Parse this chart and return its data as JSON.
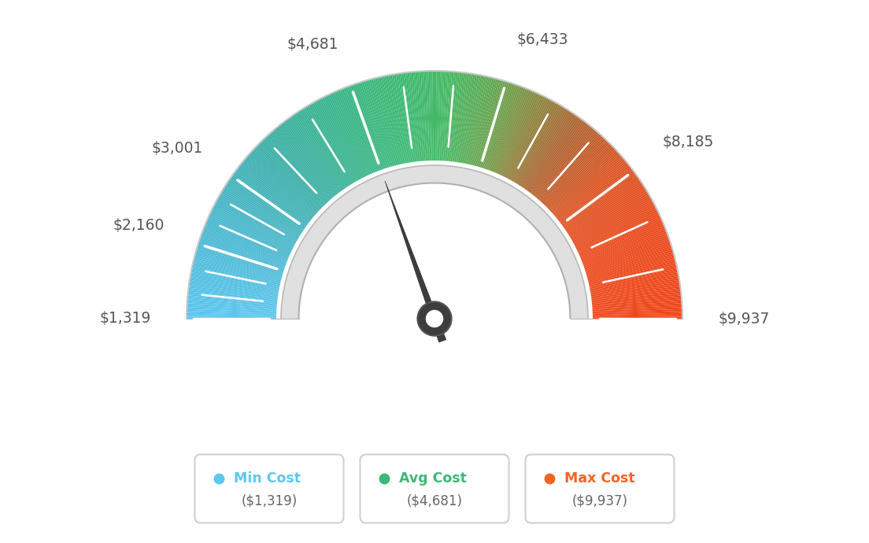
{
  "min_val": 1319,
  "max_val": 9937,
  "avg_val": 4681,
  "label_values": [
    1319,
    2160,
    3001,
    4681,
    6433,
    8185,
    9937
  ],
  "label_texts": [
    "$1,319",
    "$2,160",
    "$3,001",
    "$4,681",
    "$6,433",
    "$8,185",
    "$9,937"
  ],
  "background_color": "#ffffff",
  "legend_items": [
    {
      "label": "Min Cost",
      "sublabel": "($1,319)",
      "color": "#5bc8f0",
      "label_color": "#5bc8f0"
    },
    {
      "label": "Avg Cost",
      "sublabel": "($4,681)",
      "color": "#3cb878",
      "label_color": "#3cb878"
    },
    {
      "label": "Max Cost",
      "sublabel": "($9,937)",
      "color": "#f26522",
      "label_color": "#f26522"
    }
  ],
  "color_stops": [
    [
      0.0,
      [
        91,
        198,
        240
      ]
    ],
    [
      0.12,
      [
        75,
        185,
        210
      ]
    ],
    [
      0.25,
      [
        60,
        175,
        170
      ]
    ],
    [
      0.35,
      [
        55,
        180,
        140
      ]
    ],
    [
      0.45,
      [
        60,
        185,
        115
      ]
    ],
    [
      0.52,
      [
        70,
        185,
        100
      ]
    ],
    [
      0.6,
      [
        110,
        160,
        75
      ]
    ],
    [
      0.65,
      [
        145,
        130,
        60
      ]
    ],
    [
      0.7,
      [
        175,
        100,
        50
      ]
    ],
    [
      0.78,
      [
        220,
        85,
        35
      ]
    ],
    [
      0.88,
      [
        235,
        75,
        30
      ]
    ],
    [
      1.0,
      [
        238,
        70,
        25
      ]
    ]
  ]
}
